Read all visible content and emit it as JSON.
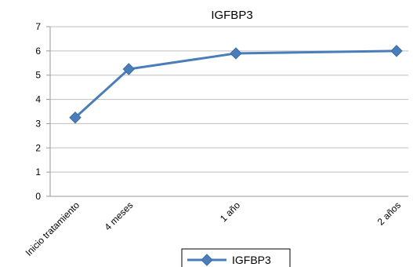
{
  "chart_data": {
    "type": "line",
    "title": "IGFBP3",
    "xlabel": "",
    "ylabel": "",
    "categories": [
      "Inicio tratamiento",
      "4 meses",
      "1 año",
      "2 años"
    ],
    "x_positions": [
      0,
      4,
      12,
      24
    ],
    "series": [
      {
        "name": "IGFBP3",
        "values": [
          3.25,
          5.25,
          5.9,
          6.0
        ],
        "color": "#4a7ebb",
        "marker": "diamond"
      }
    ],
    "ylim": [
      0,
      7
    ],
    "yticks": [
      "0",
      "1",
      "2",
      "3",
      "4",
      "5",
      "6",
      "7"
    ],
    "grid": true,
    "legend": "bottom-center"
  }
}
